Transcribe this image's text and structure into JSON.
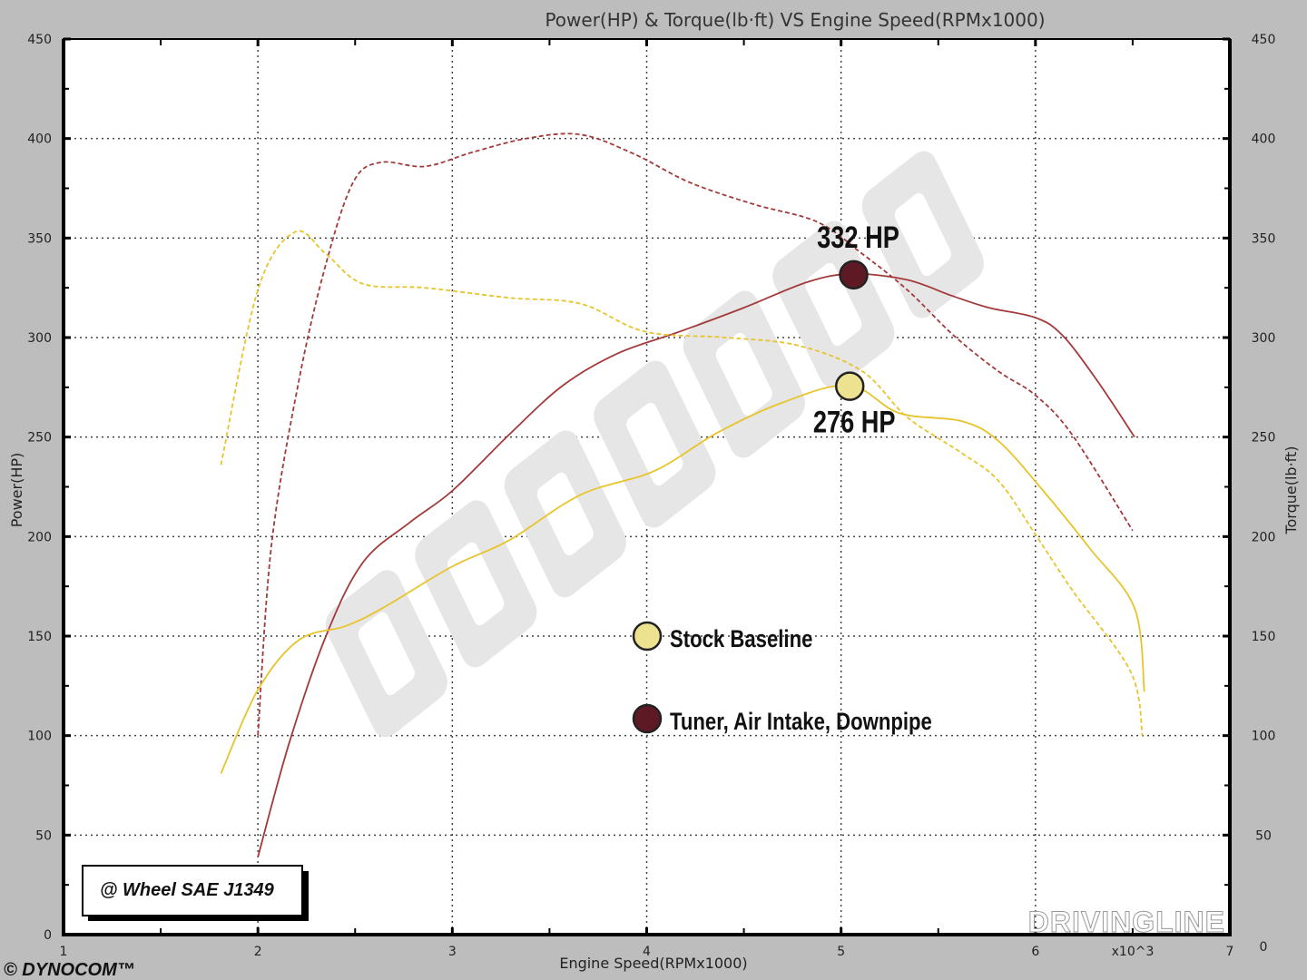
{
  "chart_data": {
    "type": "line",
    "title": "Power(HP) & Torque(lb·ft) VS Engine Speed(RPMx1000)",
    "xlabel": "Engine Speed(RPMx1000)",
    "ylabel_left": "Power(HP)",
    "ylabel_right": "Torque(lb·ft)",
    "x_multiplier_label": "x10^3",
    "xlim": [
      1,
      7
    ],
    "ylim": [
      0,
      450
    ],
    "x_ticks": [
      "1",
      "2",
      "3",
      "4",
      "5",
      "6",
      "7"
    ],
    "y_ticks": [
      "0",
      "50",
      "100",
      "150",
      "200",
      "250",
      "300",
      "350",
      "400",
      "450"
    ],
    "grid": true,
    "legend_placement": "center",
    "series": [
      {
        "name": "Tuner, Air Intake, Downpipe",
        "kind": "power",
        "style": "solid",
        "color": "#a33a3a",
        "x": [
          2.0,
          2.16,
          2.35,
          2.54,
          2.78,
          3.0,
          3.29,
          3.57,
          3.85,
          4.17,
          4.5,
          4.83,
          5.06,
          5.34,
          5.57,
          5.76,
          6.0,
          6.14,
          6.32,
          6.51
        ],
        "y": [
          39,
          96,
          150,
          187,
          207,
          223,
          251,
          276,
          292,
          303,
          315,
          328,
          332,
          329,
          321,
          315,
          310,
          301,
          278,
          250
        ]
      },
      {
        "name": "Tuner, Air Intake, Downpipe",
        "kind": "torque",
        "style": "dashed",
        "color": "#a33a3a",
        "x": [
          2.0,
          2.07,
          2.21,
          2.35,
          2.49,
          2.63,
          2.86,
          3.1,
          3.38,
          3.66,
          3.94,
          4.22,
          4.55,
          4.88,
          5.11,
          5.34,
          5.58,
          5.81,
          6.0,
          6.19,
          6.5
        ],
        "y": [
          100,
          196,
          278,
          337,
          378,
          388,
          386,
          393,
          400,
          402,
          392,
          378,
          367,
          358,
          342,
          324,
          301,
          283,
          271,
          251,
          203
        ]
      },
      {
        "name": "Stock Baseline",
        "kind": "power",
        "style": "solid",
        "color": "#e8c42c",
        "x": [
          1.81,
          2.0,
          2.21,
          2.45,
          2.64,
          3.0,
          3.29,
          3.66,
          4.04,
          4.36,
          4.69,
          5.04,
          5.3,
          5.62,
          5.81,
          6.04,
          6.28,
          6.51,
          6.56
        ],
        "y": [
          81,
          123,
          148,
          155,
          164,
          185,
          198,
          221,
          233,
          252,
          267,
          276,
          262,
          258,
          248,
          223,
          194,
          164,
          122
        ]
      },
      {
        "name": "Stock Baseline",
        "kind": "torque",
        "style": "dashed",
        "color": "#e8c42c",
        "x": [
          1.81,
          2.0,
          2.19,
          2.35,
          2.54,
          2.86,
          3.29,
          3.66,
          3.99,
          4.41,
          4.78,
          5.11,
          5.34,
          5.62,
          5.81,
          6.0,
          6.19,
          6.49,
          6.55
        ],
        "y": [
          236,
          324,
          353,
          342,
          327,
          325,
          320,
          317,
          303,
          300,
          296,
          283,
          260,
          242,
          228,
          201,
          173,
          132,
          100
        ]
      }
    ],
    "annotations": [
      {
        "text": "332 HP",
        "x": 5.06,
        "y": 332,
        "marker_color": "#5e1a24"
      },
      {
        "text": "276 HP",
        "x": 5.04,
        "y": 276,
        "marker_color": "#ece28f"
      }
    ],
    "legend": [
      {
        "label": "Stock Baseline",
        "marker_color": "#ece28f"
      },
      {
        "label": "Tuner, Air Intake, Downpipe",
        "marker_color": "#5e1a24"
      }
    ],
    "note_box": "@ Wheel SAE J1349"
  },
  "branding": {
    "dynocom": "© DYNOCOM™",
    "watermark": "DYNOCOM",
    "drivingline": "DRIVINGLINE"
  }
}
